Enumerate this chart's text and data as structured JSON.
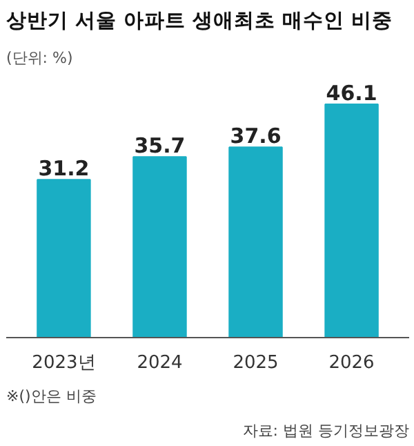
{
  "chart_data": {
    "type": "bar",
    "title": "상반기 서울 아파트 생애최초 매수인 비중",
    "subtitle": "(단위: %)",
    "categories": [
      "2023년",
      "2024",
      "2025",
      "2026"
    ],
    "values": [
      31.2,
      35.7,
      37.6,
      46.1
    ],
    "color": "#1aaec4",
    "data_labels": true,
    "grid": false,
    "tick_labels": "x",
    "annotations": [
      "※()안은 비중",
      "자료: 법원 등기정보광장"
    ]
  }
}
